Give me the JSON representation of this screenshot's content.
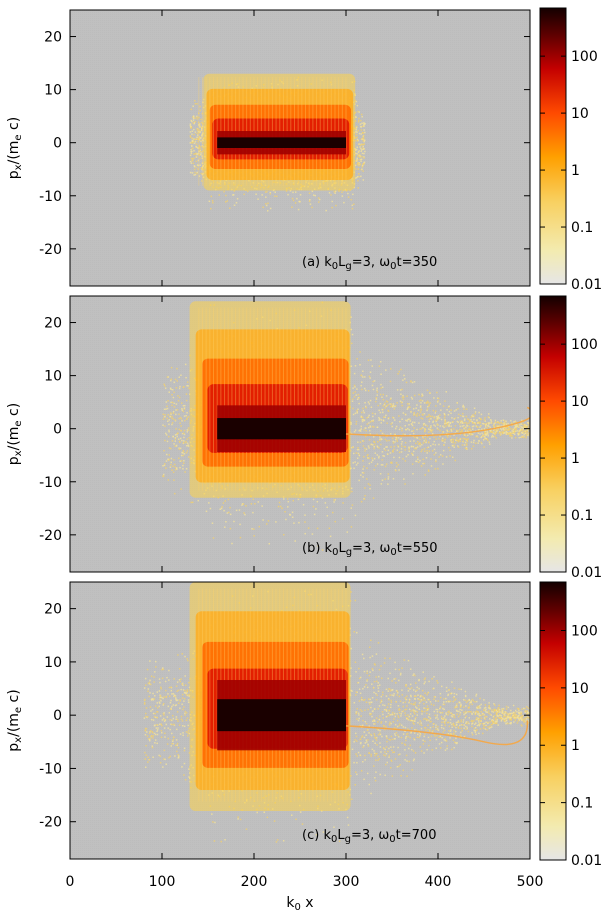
{
  "chart_data": {
    "type": "heatmap",
    "shared_x": {
      "label": "k0 x",
      "range": [
        0,
        500
      ],
      "ticks": [
        0,
        100,
        200,
        300,
        400,
        500
      ]
    },
    "colorbar": {
      "scale": "log",
      "range": [
        0.01,
        700
      ],
      "ticks": [
        0.01,
        0.1,
        1,
        10,
        100
      ],
      "tick_labels": [
        "0.01",
        "0.1",
        "1",
        "10",
        "100"
      ],
      "colors": [
        "#e6e6e6",
        "#f7e07a",
        "#ffb000",
        "#ff4a00",
        "#c00000",
        "#1a0000"
      ]
    },
    "panels": [
      {
        "label": "(a)",
        "annotation": "k0Lg=3, ω0t=350",
        "ylabel": "px/(me c)",
        "ylim": [
          -27,
          25
        ],
        "yticks": [
          -20,
          -10,
          0,
          10,
          20
        ],
        "core": {
          "x": [
            160,
            300
          ],
          "p": [
            -1,
            1
          ]
        },
        "spread_x": [
          130,
          320
        ],
        "p_max": 13,
        "p_min": -9
      },
      {
        "label": "(b)",
        "annotation": "k0Lg=3, ω0t=550",
        "ylabel": "px/(me c)",
        "ylim": [
          -27,
          25
        ],
        "yticks": [
          -20,
          -10,
          0,
          10,
          20
        ],
        "core": {
          "x": [
            160,
            300
          ],
          "p": [
            -2,
            2
          ]
        },
        "spread_x": [
          100,
          500
        ],
        "p_max": 24,
        "p_min": -13
      },
      {
        "label": "(c)",
        "annotation": "k0Lg=3, ω0t=700",
        "ylabel": "px/(me c)",
        "ylim": [
          -27,
          25
        ],
        "yticks": [
          -20,
          -10,
          0,
          10,
          20
        ],
        "core": {
          "x": [
            160,
            300
          ],
          "p": [
            -3,
            3
          ]
        },
        "spread_x": [
          80,
          500
        ],
        "p_max": 25,
        "p_min": -18
      }
    ]
  }
}
